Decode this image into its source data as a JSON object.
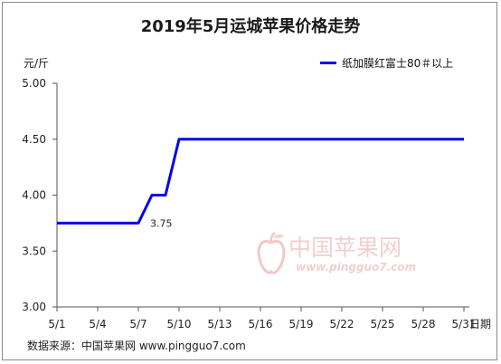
{
  "title": "2019年5月运城苹果价格走势",
  "source": "数据来源：中国苹果网 www.pingguo7.com",
  "watermark": {
    "text": "中国苹果网",
    "url": "www.pingguo7.com"
  },
  "colors": {
    "series": "#0000ee",
    "axis": "#555555",
    "watermark": "#f0d0d0"
  },
  "chart_data": {
    "type": "line",
    "title": "2019年5月运城苹果价格走势",
    "ylabel": "元/斤",
    "xlabel": "日期",
    "ylim": [
      3.0,
      5.0
    ],
    "yticks": [
      "3.00",
      "3.50",
      "4.00",
      "4.50",
      "5.00"
    ],
    "ytick_values": [
      3.0,
      3.5,
      4.0,
      4.5,
      5.0
    ],
    "xlim": [
      1,
      31
    ],
    "xticks": [
      "5/1",
      "5/4",
      "5/7",
      "5/10",
      "5/13",
      "5/16",
      "5/19",
      "5/22",
      "5/25",
      "5/28",
      "5/31"
    ],
    "xtick_values": [
      1,
      4,
      7,
      10,
      13,
      16,
      19,
      22,
      25,
      28,
      31
    ],
    "grid": false,
    "legend_position": "top-right",
    "series": [
      {
        "name": "纸加膜红富士80＃以上",
        "x": [
          1,
          2,
          3,
          4,
          5,
          6,
          7,
          8,
          9,
          10,
          11,
          12,
          13,
          14,
          15,
          16,
          17,
          18,
          19,
          20,
          21,
          22,
          23,
          24,
          25,
          26,
          27,
          28,
          29,
          30,
          31
        ],
        "y": [
          3.75,
          3.75,
          3.75,
          3.75,
          3.75,
          3.75,
          3.75,
          4.0,
          4.0,
          4.5,
          4.5,
          4.5,
          4.5,
          4.5,
          4.5,
          4.5,
          4.5,
          4.5,
          4.5,
          4.5,
          4.5,
          4.5,
          4.5,
          4.5,
          4.5,
          4.5,
          4.5,
          4.5,
          4.5,
          4.5,
          4.5
        ]
      }
    ],
    "annotations": [
      {
        "x": 7,
        "y": 3.75,
        "text": "3.75"
      }
    ]
  }
}
